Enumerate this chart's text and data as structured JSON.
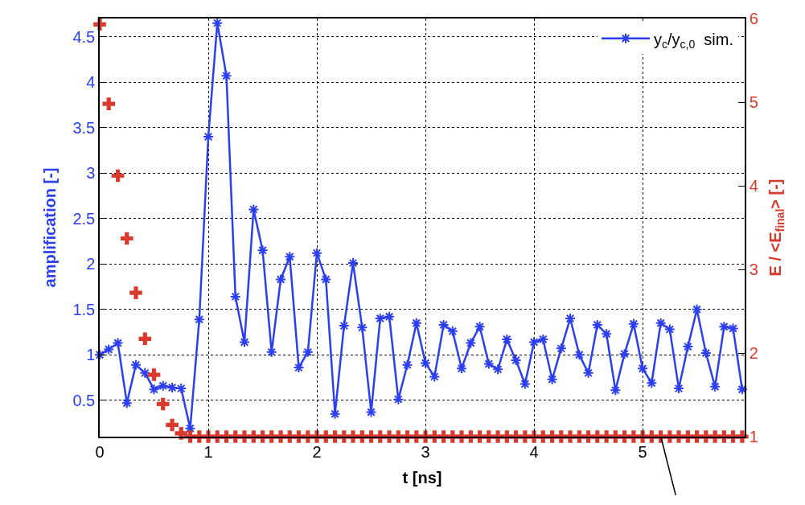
{
  "chart_data": {
    "type": "line",
    "xlabel": "t [ns]",
    "ylabel": "amplification [-]",
    "y2label": "E / <E$_{final}$> [-]",
    "x": [
      0,
      0.083,
      0.167,
      0.25,
      0.333,
      0.417,
      0.5,
      0.583,
      0.667,
      0.75,
      0.833,
      0.917,
      1,
      1.083,
      1.167,
      1.25,
      1.333,
      1.417,
      1.5,
      1.583,
      1.667,
      1.75,
      1.833,
      1.917,
      2,
      2.083,
      2.167,
      2.25,
      2.333,
      2.417,
      2.5,
      2.583,
      2.667,
      2.75,
      2.833,
      2.917,
      3,
      3.083,
      3.167,
      3.25,
      3.333,
      3.417,
      3.5,
      3.583,
      3.667,
      3.75,
      3.833,
      3.917,
      4,
      4.083,
      4.167,
      4.25,
      4.333,
      4.417,
      4.5,
      4.583,
      4.667,
      4.75,
      4.833,
      4.917,
      5,
      5.083,
      5.167,
      5.25,
      5.333,
      5.417,
      5.5,
      5.583,
      5.667,
      5.75,
      5.833,
      5.917
    ],
    "series": [
      {
        "name": "y$_{c}$/y$_{c,0}$  sim.",
        "color": "#2b3ff0",
        "marker": "cross",
        "values": [
          1.0,
          1.06,
          1.13,
          0.47,
          0.89,
          0.8,
          0.62,
          0.66,
          0.64,
          0.63,
          0.19,
          1.39,
          3.4,
          4.65,
          4.07,
          1.64,
          1.14,
          2.6,
          2.15,
          1.03,
          1.83,
          2.08,
          0.86,
          1.03,
          2.12,
          1.83,
          0.35,
          1.32,
          2.01,
          1.3,
          0.37,
          1.4,
          1.42,
          0.51,
          0.89,
          1.35,
          0.91,
          0.76,
          1.33,
          1.26,
          0.85,
          1.13,
          1.31,
          0.9,
          0.84,
          1.17,
          0.94,
          0.68,
          1.14,
          1.17,
          0.73,
          1.07,
          1.4,
          1.0,
          0.8,
          1.33,
          1.23,
          0.61,
          1.01,
          1.34,
          0.85,
          0.69,
          1.35,
          1.28,
          0.63,
          1.09,
          1.5,
          1.02,
          0.65,
          1.31,
          1.29,
          0.62
        ]
      },
      {
        "type": "scatter",
        "axis": "y2",
        "color": "#d93a2b",
        "marker": "cross",
        "values": [
          5.93,
          4.98,
          4.12,
          3.37,
          2.72,
          2.17,
          1.74,
          1.39,
          1.14,
          1.04,
          1,
          1,
          1,
          1,
          1,
          1,
          1,
          1,
          1,
          1,
          1,
          1,
          1,
          1,
          1,
          1,
          1,
          1,
          1,
          1,
          1,
          1,
          1,
          1,
          1,
          1,
          1,
          1,
          1,
          1,
          1,
          1,
          1,
          1,
          1,
          1,
          1,
          1,
          1,
          1,
          1,
          1,
          1,
          1,
          1,
          1,
          1,
          1,
          1,
          1,
          1,
          1,
          1,
          1,
          1,
          1,
          1,
          1,
          1,
          1,
          1,
          1
        ]
      }
    ],
    "xlim": [
      0,
      5.94
    ],
    "xticks": [
      0,
      1,
      2,
      3,
      4,
      5
    ],
    "ylim": [
      0.1,
      4.7
    ],
    "yticks": [
      0.5,
      1,
      1.5,
      2,
      2.5,
      3,
      3.5,
      4,
      4.5
    ],
    "y2lim": [
      1,
      6
    ],
    "y2ticks": [
      1,
      2,
      3,
      4,
      5,
      6
    ],
    "grid": true,
    "legend": "top right"
  }
}
